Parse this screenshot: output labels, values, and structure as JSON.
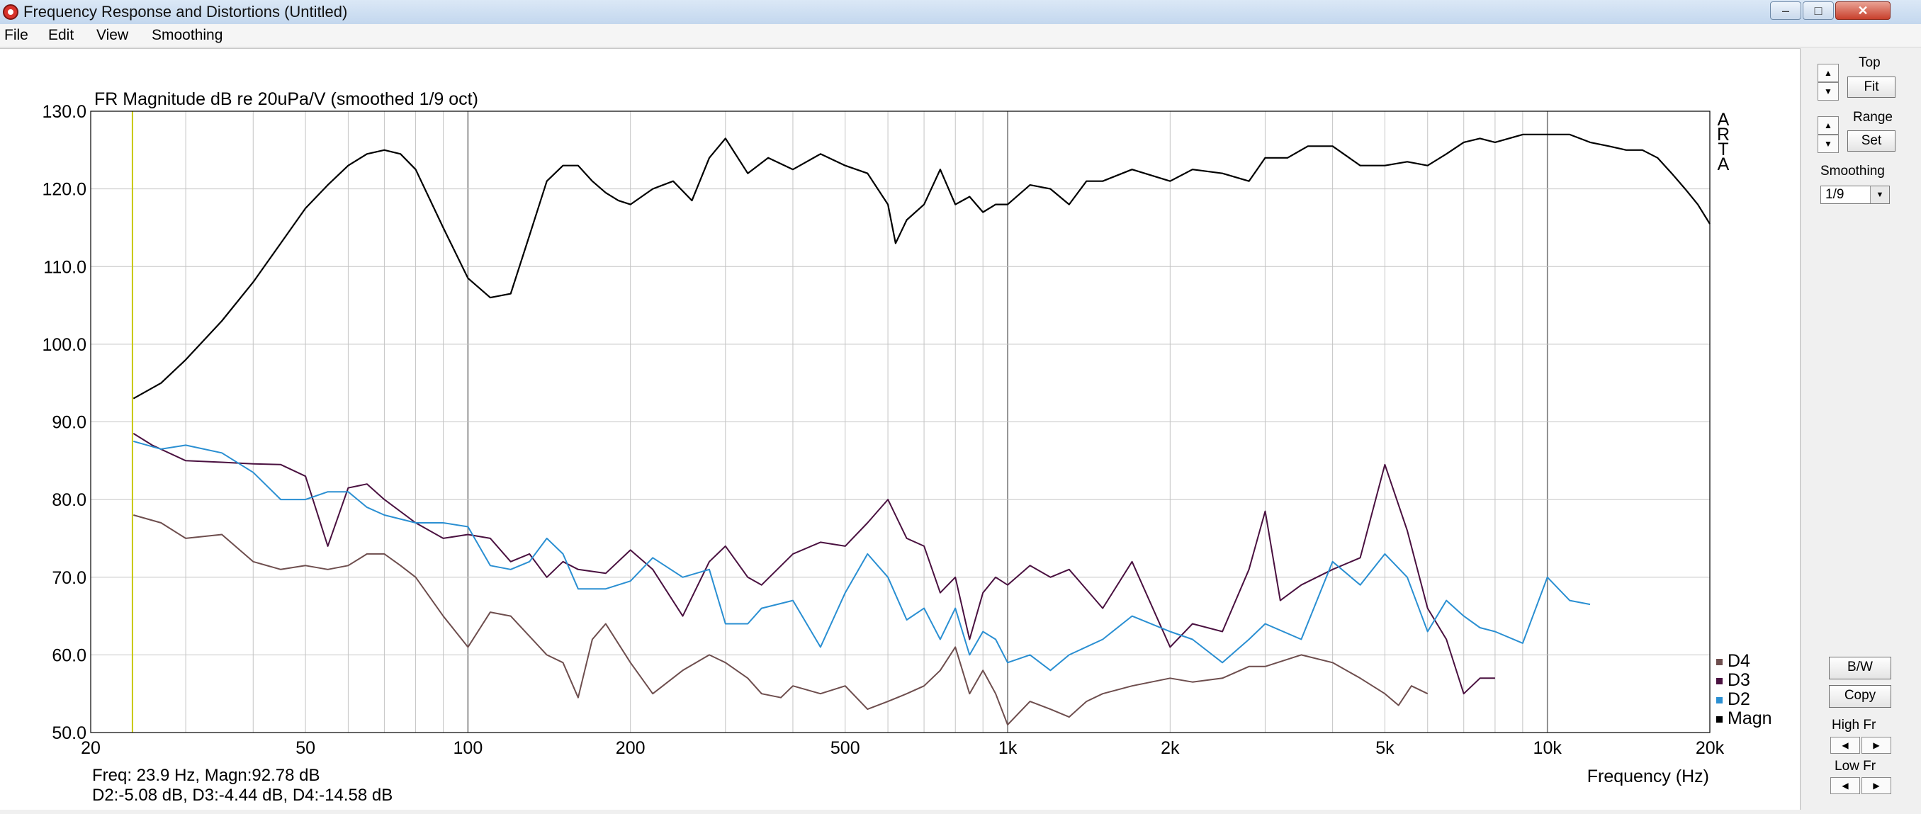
{
  "window": {
    "title": "Frequency Response and Distortions (Untitled)",
    "controls": {
      "minimize": "–",
      "maximize": "□",
      "close": "✕"
    }
  },
  "menu": [
    "File",
    "Edit",
    "View",
    "Smoothing"
  ],
  "side_panel": {
    "top_label": "Top",
    "fit_label": "Fit",
    "range_label": "Range",
    "set_label": "Set",
    "smoothing_label": "Smoothing",
    "smoothing_value": "1/9",
    "bw_label": "B/W",
    "copy_label": "Copy",
    "high_fr_label": "High Fr",
    "low_fr_label": "Low Fr"
  },
  "chart_data": {
    "type": "line",
    "title": "FR Magnitude dB re 20uPa/V (smoothed 1/9 oct)",
    "xlabel": "Frequency (Hz)",
    "ylabel": "",
    "x_scale": "log",
    "xlim": [
      20,
      20000
    ],
    "ylim": [
      50,
      130
    ],
    "x_ticks": [
      20,
      50,
      100,
      200,
      500,
      1000,
      2000,
      5000,
      10000,
      20000
    ],
    "x_tick_labels": [
      "20",
      "50",
      "100",
      "200",
      "500",
      "1k",
      "2k",
      "5k",
      "10k",
      "20k"
    ],
    "y_ticks": [
      50,
      60,
      70,
      80,
      90,
      100,
      110,
      120,
      130
    ],
    "y_tick_labels": [
      "50.0",
      "60.0",
      "70.0",
      "80.0",
      "90.0",
      "100.0",
      "110.0",
      "120.0",
      "130.0"
    ],
    "grid": true,
    "cursor_x": 23.9,
    "side_text": "ARTA",
    "legend_position": "bottom-right",
    "readout": {
      "line1": "Freq: 23.9 Hz, Magn:92.78 dB",
      "line2": "D2:-5.08 dB, D3:-4.44 dB, D4:-14.58 dB"
    },
    "colors": {
      "Magn": "#000000",
      "D2": "#2a8fd2",
      "D3": "#4a1140",
      "D4": "#6e4e4e",
      "cursor": "#c8c800",
      "grid": "#c4c4c4",
      "grid_decade": "#7a7a7a"
    },
    "series": [
      {
        "name": "D4",
        "color": "#6e4e4e",
        "x": [
          24,
          27,
          30,
          35,
          40,
          45,
          50,
          55,
          60,
          65,
          70,
          75,
          80,
          90,
          100,
          110,
          120,
          140,
          150,
          160,
          170,
          180,
          200,
          220,
          250,
          280,
          300,
          330,
          350,
          380,
          400,
          450,
          500,
          550,
          600,
          650,
          700,
          750,
          800,
          850,
          900,
          950,
          1000,
          1100,
          1200,
          1300,
          1400,
          1500,
          1700,
          2000,
          2200,
          2500,
          2800,
          3000,
          3500,
          4000,
          4500,
          5000,
          5300,
          5600,
          6000
        ],
        "y": [
          78,
          77,
          75,
          75.5,
          72,
          71,
          71.5,
          71,
          71.5,
          73,
          73,
          71.5,
          70,
          65,
          61,
          65.5,
          65,
          60,
          59,
          54.5,
          62,
          64,
          59,
          55,
          58,
          60,
          59,
          57,
          55,
          54.5,
          56,
          55,
          56,
          53,
          54,
          55,
          56,
          58,
          61,
          55,
          58,
          55,
          51,
          54,
          53,
          52,
          54,
          55,
          56,
          57,
          56.5,
          57,
          58.5,
          58.5,
          60,
          59,
          57,
          55,
          53.5,
          56,
          55
        ]
      },
      {
        "name": "D3",
        "color": "#4a1140",
        "x": [
          24,
          26,
          30,
          35,
          40,
          45,
          50,
          55,
          60,
          65,
          70,
          80,
          90,
          100,
          110,
          120,
          130,
          140,
          150,
          160,
          180,
          200,
          220,
          250,
          280,
          300,
          330,
          350,
          400,
          450,
          500,
          550,
          600,
          650,
          700,
          750,
          800,
          850,
          900,
          950,
          1000,
          1100,
          1200,
          1300,
          1500,
          1700,
          2000,
          2200,
          2500,
          2800,
          3000,
          3200,
          3500,
          4000,
          4500,
          5000,
          5500,
          6000,
          6500,
          7000,
          7500,
          8000
        ],
        "y": [
          88.5,
          87,
          85,
          84.8,
          84.6,
          84.5,
          83,
          74,
          81.5,
          82,
          80,
          77,
          75,
          75.5,
          75,
          72,
          73,
          70,
          72,
          71,
          70.5,
          73.5,
          71,
          65,
          72,
          74,
          70,
          69,
          73,
          74.5,
          74,
          77,
          80,
          75,
          74,
          68,
          70,
          62,
          68,
          70,
          69,
          71.5,
          70,
          71,
          66,
          72,
          61,
          64,
          63,
          71,
          78.5,
          67,
          69,
          71,
          72.5,
          84.5,
          76,
          66,
          62,
          55,
          57,
          57
        ]
      },
      {
        "name": "D2",
        "color": "#2a8fd2",
        "x": [
          24,
          27,
          30,
          35,
          40,
          45,
          50,
          55,
          60,
          65,
          70,
          80,
          90,
          100,
          110,
          120,
          130,
          140,
          150,
          160,
          180,
          200,
          220,
          250,
          280,
          300,
          330,
          350,
          400,
          450,
          500,
          550,
          600,
          650,
          700,
          750,
          800,
          850,
          900,
          950,
          1000,
          1100,
          1200,
          1300,
          1500,
          1700,
          2000,
          2200,
          2500,
          2800,
          3000,
          3500,
          4000,
          4500,
          5000,
          5500,
          6000,
          6500,
          7000,
          7500,
          8000,
          9000,
          10000,
          11000,
          12000
        ],
        "y": [
          87.5,
          86.5,
          87,
          86,
          83.5,
          80,
          80,
          81,
          81,
          79,
          78,
          77,
          77,
          76.5,
          71.5,
          71,
          72,
          75,
          73,
          68.5,
          68.5,
          69.5,
          72.5,
          70,
          71,
          64,
          64,
          66,
          67,
          61,
          68,
          73,
          70,
          64.5,
          66,
          62,
          66,
          60,
          63,
          62,
          59,
          60,
          58,
          60,
          62,
          65,
          63,
          62,
          59,
          62,
          64,
          62,
          72,
          69,
          73,
          70,
          63,
          67,
          65,
          63.5,
          63,
          61.5,
          70,
          67,
          66.5
        ]
      },
      {
        "name": "Magn",
        "color": "#000000",
        "x": [
          24,
          27,
          30,
          35,
          40,
          45,
          50,
          55,
          60,
          65,
          70,
          75,
          80,
          90,
          100,
          110,
          120,
          130,
          140,
          150,
          160,
          170,
          180,
          190,
          200,
          220,
          240,
          260,
          280,
          300,
          330,
          360,
          400,
          450,
          500,
          550,
          600,
          620,
          650,
          700,
          750,
          800,
          850,
          900,
          950,
          1000,
          1100,
          1200,
          1300,
          1400,
          1500,
          1700,
          2000,
          2200,
          2500,
          2800,
          3000,
          3300,
          3600,
          4000,
          4500,
          5000,
          5500,
          6000,
          6500,
          7000,
          7500,
          8000,
          9000,
          10000,
          11000,
          12000,
          13000,
          14000,
          15000,
          16000,
          17000,
          18000,
          19000,
          20000
        ],
        "y": [
          93,
          95,
          98,
          103,
          108,
          113,
          117.5,
          120.5,
          123,
          124.5,
          125,
          124.5,
          122.5,
          115,
          108.5,
          106,
          106.5,
          114,
          121,
          123,
          123,
          121,
          119.5,
          118.5,
          118,
          120,
          121,
          118.5,
          124,
          126.5,
          122,
          124,
          122.5,
          124.5,
          123,
          122,
          118,
          113,
          116,
          118,
          122.5,
          118,
          119,
          117,
          118,
          118,
          120.5,
          120,
          118,
          121,
          121,
          122.5,
          121,
          122.5,
          122,
          121,
          124,
          124,
          125.5,
          125.5,
          123,
          123,
          123.5,
          123,
          124.5,
          126,
          126.5,
          126,
          127,
          127,
          127,
          126,
          125.5,
          125,
          125,
          124,
          122,
          120,
          118,
          115.5
        ]
      }
    ]
  }
}
